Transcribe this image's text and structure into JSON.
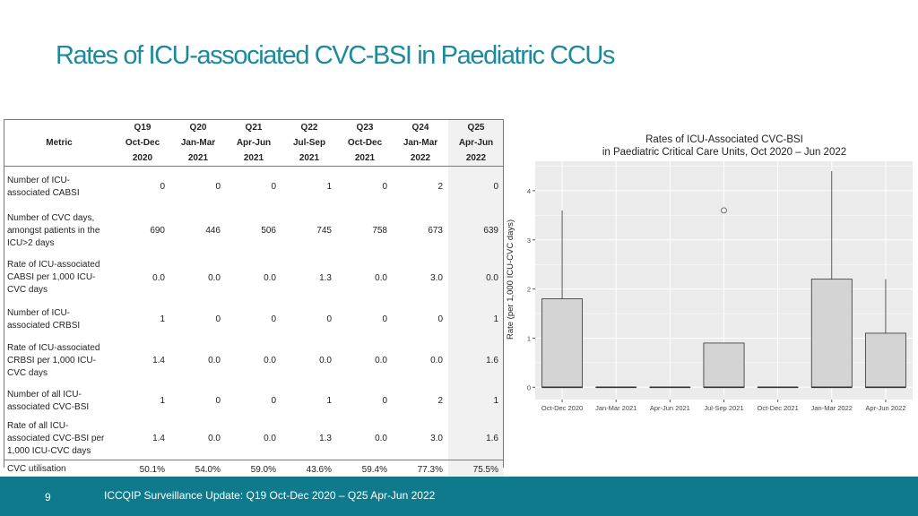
{
  "slide": {
    "title": "Rates of ICU-associated CVC-BSI in Paediatric CCUs",
    "footer": "ICCQIP Surveillance Update: Q19 Oct-Dec 2020 – Q25 Apr-Jun 2022",
    "page_number": "9"
  },
  "table": {
    "metric_header": "Metric",
    "columns": [
      {
        "q": "Q19",
        "period": "Oct-Dec",
        "year": "2020"
      },
      {
        "q": "Q20",
        "period": "Jan-Mar",
        "year": "2021"
      },
      {
        "q": "Q21",
        "period": "Apr-Jun",
        "year": "2021"
      },
      {
        "q": "Q22",
        "period": "Jul-Sep",
        "year": "2021"
      },
      {
        "q": "Q23",
        "period": "Oct-Dec",
        "year": "2021"
      },
      {
        "q": "Q24",
        "period": "Jan-Mar",
        "year": "2022"
      },
      {
        "q": "Q25",
        "period": "Apr-Jun",
        "year": "2022"
      }
    ],
    "rows": [
      {
        "label_lines": [
          "Number of ICU-",
          "associated CABSI"
        ],
        "values": [
          "0",
          "0",
          "0",
          "1",
          "0",
          "2",
          "0"
        ]
      },
      {
        "label_lines": [
          "Number of CVC days,",
          "amongst patients in the",
          "ICU>2 days"
        ],
        "values": [
          "690",
          "446",
          "506",
          "745",
          "758",
          "673",
          "639"
        ]
      },
      {
        "label_lines": [
          "Rate of ICU-associated",
          "CABSI  per 1,000 ICU-",
          "CVC days"
        ],
        "values": [
          "0.0",
          "0.0",
          "0.0",
          "1.3",
          "0.0",
          "3.0",
          "0.0"
        ]
      },
      {
        "label_lines": [
          "Number of ICU-",
          "associated CRBSI"
        ],
        "values": [
          "1",
          "0",
          "0",
          "0",
          "0",
          "0",
          "1"
        ]
      },
      {
        "label_lines": [
          "Rate of ICU-associated",
          "CRBSI per 1,000 ICU-",
          "CVC days"
        ],
        "values": [
          "1.4",
          "0.0",
          "0.0",
          "0.0",
          "0.0",
          "0.0",
          "1.6"
        ]
      },
      {
        "label_lines": [
          "Number of all ICU-",
          "associated CVC-BSI"
        ],
        "values": [
          "1",
          "0",
          "0",
          "1",
          "0",
          "2",
          "1"
        ]
      },
      {
        "label_lines": [
          "Rate of all ICU-",
          "associated CVC-BSI per",
          "1,000 ICU-CVC days"
        ],
        "values": [
          "1.4",
          "0.0",
          "0.0",
          "1.3",
          "0.0",
          "3.0",
          "1.6"
        ]
      },
      {
        "label_lines": [
          "CVC utilisation"
        ],
        "values": [
          "50.1%",
          "54.0%",
          "59.0%",
          "43.6%",
          "59.4%",
          "77.3%",
          "75.5%"
        ]
      }
    ]
  },
  "chart_data": {
    "type": "boxplot",
    "title": "Rates of ICU-Associated CVC-BSI\nin Paediatric Critical Care Units, Oct 2020 – Jun 2022",
    "title_lines": [
      "Rates of ICU-Associated CVC-BSI",
      "in Paediatric Critical Care Units, Oct 2020 – Jun 2022"
    ],
    "xlabel": "",
    "ylabel": "Rate (per 1,000 ICU-CVC days)",
    "ylim": [
      -0.25,
      4.6
    ],
    "yticks": [
      0,
      1,
      2,
      3,
      4
    ],
    "categories": [
      "Oct-Dec 2020",
      "Jan-Mar 2021",
      "Apr-Jun 2021",
      "Jul-Sep 2021",
      "Oct-Dec 2021",
      "Jan-Mar 2022",
      "Apr-Jun 2022"
    ],
    "boxes": [
      {
        "min": 0,
        "q1": 0,
        "median": 0,
        "q3": 1.8,
        "max": 3.6,
        "outliers": []
      },
      {
        "min": 0,
        "q1": 0,
        "median": 0,
        "q3": 0,
        "max": 0,
        "outliers": []
      },
      {
        "min": 0,
        "q1": 0,
        "median": 0,
        "q3": 0,
        "max": 0,
        "outliers": []
      },
      {
        "min": 0,
        "q1": 0,
        "median": 0,
        "q3": 0.9,
        "max": 0.9,
        "outliers": [
          3.6
        ]
      },
      {
        "min": 0,
        "q1": 0,
        "median": 0,
        "q3": 0,
        "max": 0,
        "outliers": []
      },
      {
        "min": 0,
        "q1": 0,
        "median": 0,
        "q3": 2.2,
        "max": 4.4,
        "outliers": []
      },
      {
        "min": 0,
        "q1": 0,
        "median": 0,
        "q3": 1.1,
        "max": 2.2,
        "outliers": []
      }
    ],
    "grid": true,
    "colors": {
      "box_fill": "#d4d4d4",
      "panel": "#ebebeb",
      "grid": "#ffffff",
      "line": "#333333"
    }
  }
}
